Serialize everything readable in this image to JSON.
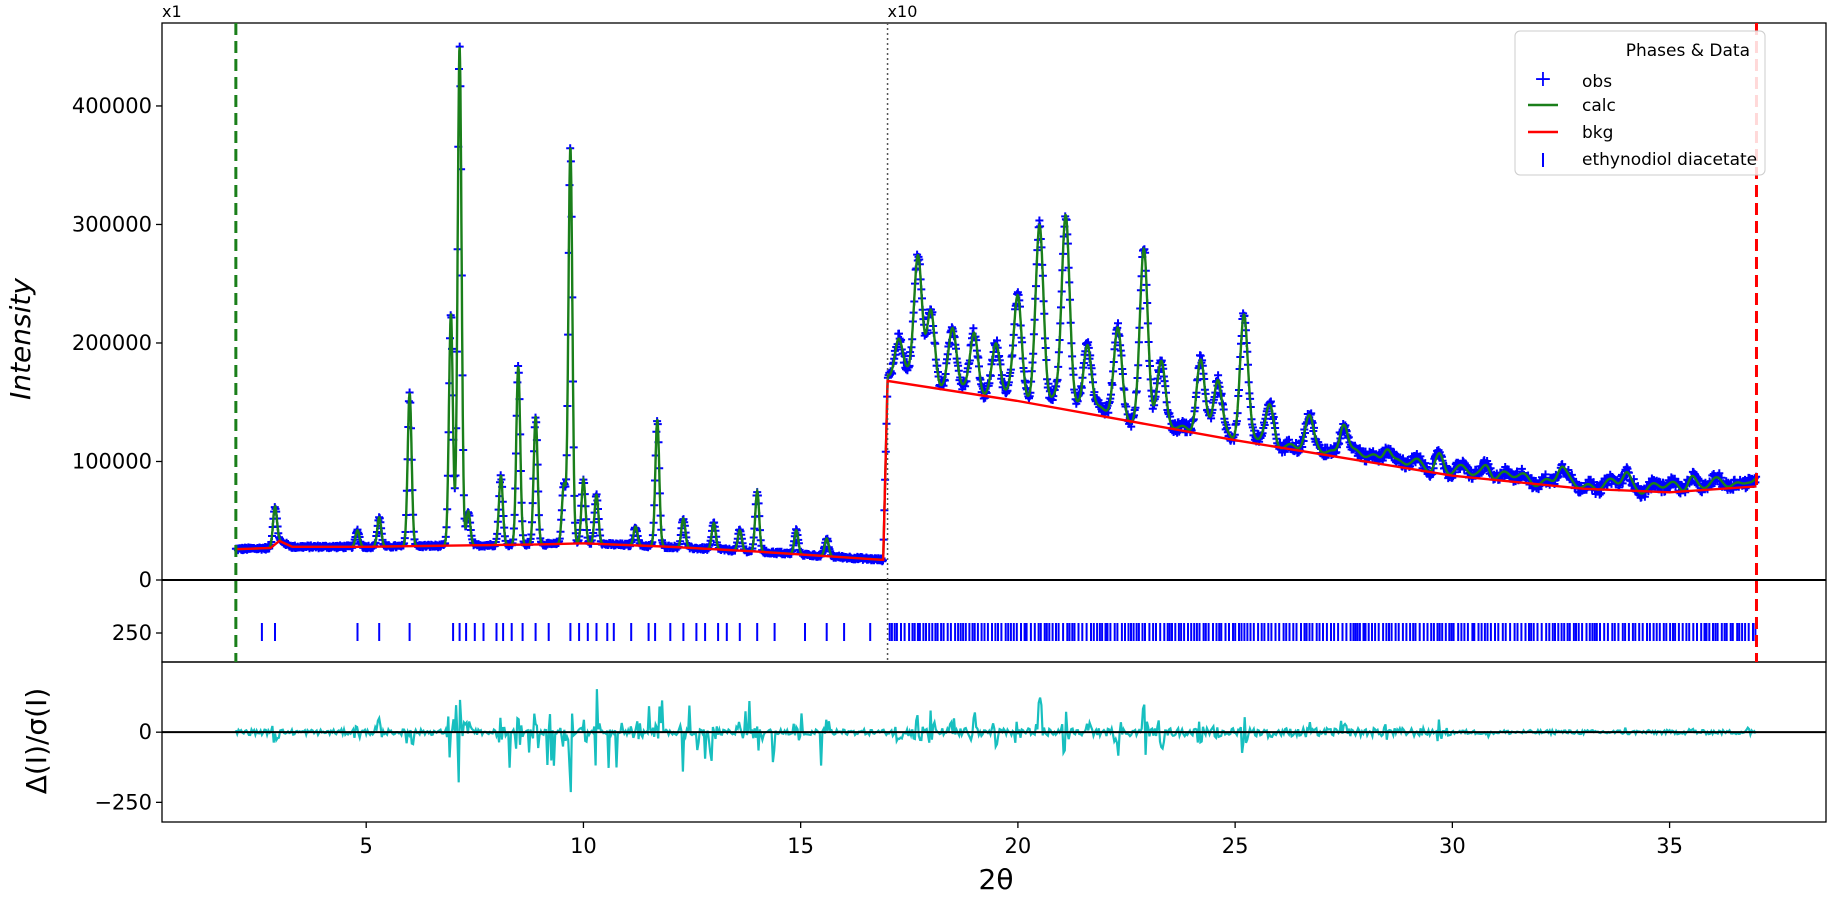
{
  "chart_data": {
    "type": "line",
    "x_label": "2θ",
    "y_label_top": "Intensity",
    "y_label_bottom": "Δ(I)/σ(I)",
    "x_range": [
      0.3,
      38.6
    ],
    "x_ticks": [
      "5",
      "10",
      "15",
      "20",
      "25",
      "30",
      "35"
    ],
    "x_tick_values": [
      5,
      10,
      15,
      20,
      25,
      30,
      35
    ],
    "y_range_top": [
      0,
      470000
    ],
    "y_ticks_top": [
      "0",
      "100000",
      "200000",
      "300000",
      "400000"
    ],
    "y_tick_values_top": [
      0,
      100000,
      200000,
      300000,
      400000
    ],
    "tick_band_label": "250",
    "y_range_bottom": [
      -320,
      250
    ],
    "y_ticks_bottom": [
      "−250",
      "0"
    ],
    "y_tick_values_bottom": [
      -250,
      0
    ],
    "scale_markers": [
      {
        "x": 0.3,
        "label": "x1"
      },
      {
        "x": 17.0,
        "label": "x10"
      }
    ],
    "limit_lines": [
      {
        "x": 2.0,
        "color": "#1a7f1a"
      },
      {
        "x": 37.0,
        "color": "#ff0000"
      }
    ],
    "legend": {
      "title": "Phases & Data",
      "entries": [
        {
          "label": "obs",
          "marker": "+",
          "color": "#0000ff"
        },
        {
          "label": "calc",
          "marker": "line",
          "color": "#1a7f1a"
        },
        {
          "label": "bkg",
          "marker": "line",
          "color": "#ff0000"
        },
        {
          "label": "ethynodiol diacetate",
          "marker": "|",
          "color": "#0000ff"
        }
      ]
    },
    "background": [
      [
        2.0,
        26000
      ],
      [
        2.8,
        27000
      ],
      [
        3.0,
        33000
      ],
      [
        3.3,
        28000
      ],
      [
        5.0,
        28000
      ],
      [
        7.0,
        29000
      ],
      [
        9.0,
        30000
      ],
      [
        10.0,
        31000
      ],
      [
        12.0,
        28000
      ],
      [
        14.0,
        24000
      ],
      [
        16.9,
        17000
      ],
      [
        17.0,
        168000
      ],
      [
        20.0,
        151000
      ],
      [
        25.0,
        118000
      ],
      [
        30.0,
        88000
      ],
      [
        33.0,
        77000
      ],
      [
        35.0,
        74000
      ],
      [
        37.0,
        79000
      ]
    ],
    "peaks": [
      [
        2.9,
        62000
      ],
      [
        4.8,
        42000
      ],
      [
        5.3,
        53000
      ],
      [
        6.0,
        158000
      ],
      [
        6.95,
        225000
      ],
      [
        7.15,
        450000
      ],
      [
        7.35,
        58000
      ],
      [
        8.1,
        88000
      ],
      [
        8.5,
        180000
      ],
      [
        8.9,
        138000
      ],
      [
        9.55,
        80000
      ],
      [
        9.7,
        365000
      ],
      [
        10.0,
        85000
      ],
      [
        10.3,
        72000
      ],
      [
        11.2,
        45000
      ],
      [
        11.7,
        135000
      ],
      [
        12.3,
        52000
      ],
      [
        13.0,
        48000
      ],
      [
        13.6,
        42000
      ],
      [
        14.0,
        75000
      ],
      [
        14.9,
        42000
      ],
      [
        15.6,
        35000
      ],
      [
        17.25,
        200000
      ],
      [
        17.7,
        272000
      ],
      [
        18.0,
        225000
      ],
      [
        18.5,
        205000
      ],
      [
        19.0,
        205000
      ],
      [
        19.5,
        195000
      ],
      [
        20.0,
        235000
      ],
      [
        20.5,
        298000
      ],
      [
        21.1,
        305000
      ],
      [
        21.6,
        200000
      ],
      [
        22.3,
        205000
      ],
      [
        22.9,
        275000
      ],
      [
        23.3,
        175000
      ],
      [
        24.2,
        180000
      ],
      [
        24.6,
        165000
      ],
      [
        25.2,
        220000
      ],
      [
        25.8,
        140000
      ],
      [
        26.7,
        130000
      ],
      [
        27.5,
        132000
      ],
      [
        28.5,
        112000
      ],
      [
        29.7,
        103000
      ],
      [
        30.8,
        95000
      ],
      [
        32.5,
        89000
      ],
      [
        34.0,
        86000
      ],
      [
        35.5,
        85000
      ],
      [
        36.8,
        83000
      ]
    ],
    "reflections": [
      2.6,
      2.9,
      4.8,
      5.3,
      6.0,
      7.0,
      7.15,
      7.3,
      7.5,
      7.7,
      8.0,
      8.15,
      8.35,
      8.6,
      8.9,
      9.2,
      9.7,
      9.9,
      10.1,
      10.3,
      10.55,
      10.7,
      11.1,
      11.5,
      11.65,
      12.0,
      12.3,
      12.6,
      12.8,
      13.1,
      13.3,
      13.6,
      14.0,
      14.4,
      15.1,
      15.6,
      16.0,
      16.6,
      17.05
    ],
    "reflection_dense_start": 17.1,
    "reflection_dense_end": 37.0
  },
  "colors": {
    "obs": "#0000ff",
    "calc": "#1a7f1a",
    "bkg": "#ff0000",
    "diff": "#17bfbf",
    "zero": "#000000"
  }
}
